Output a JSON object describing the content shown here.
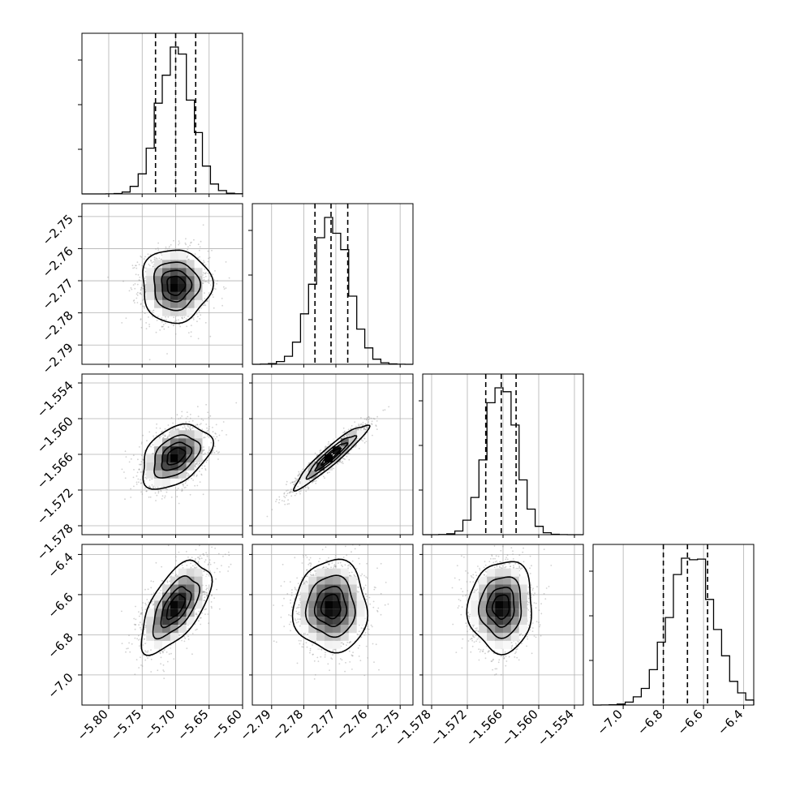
{
  "chart_data": {
    "type": "corner",
    "n_params": 4,
    "grid": true,
    "colors": {
      "line": "#000000",
      "grid": "#b0b0b0",
      "points": "#9a9a9a",
      "background": "#ffffff"
    },
    "params": [
      {
        "lim": [
          -5.84,
          -5.6
        ],
        "ticks": [
          -5.8,
          -5.75,
          -5.7,
          -5.65,
          -5.6
        ],
        "tick_labels": [
          "−5.80",
          "−5.75",
          "−5.70",
          "−5.65",
          "−5.60"
        ],
        "mean": -5.7,
        "sd": 0.025,
        "quantiles": [
          -5.73,
          -5.7,
          -5.67
        ]
      },
      {
        "lim": [
          -2.796,
          -2.746
        ],
        "ticks": [
          -2.79,
          -2.78,
          -2.77,
          -2.76,
          -2.75
        ],
        "tick_labels": [
          "−2.79",
          "−2.78",
          "−2.77",
          "−2.76",
          "−2.75"
        ],
        "mean": -2.7715,
        "sd": 0.0055,
        "quantiles": [
          -2.7765,
          -2.7715,
          -2.7663
        ]
      },
      {
        "lim": [
          -1.5795,
          -1.5525
        ],
        "ticks": [
          -1.578,
          -1.572,
          -1.566,
          -1.56,
          -1.554
        ],
        "tick_labels": [
          "−1.578",
          "−1.572",
          "−1.566",
          "−1.560",
          "−1.554"
        ],
        "mean": -1.5663,
        "sd": 0.0026,
        "quantiles": [
          -1.5689,
          -1.5663,
          -1.5638
        ]
      },
      {
        "lim": [
          -7.15,
          -6.35
        ],
        "ticks": [
          -7.0,
          -6.8,
          -6.6,
          -6.4
        ],
        "tick_labels": [
          "−7.0",
          "−6.8",
          "−6.6",
          "−6.4"
        ],
        "mean": -6.66,
        "sd": 0.11,
        "quantiles": [
          -6.8,
          -6.68,
          -6.58
        ]
      }
    ],
    "correlations": [
      [
        1.0,
        0.0,
        0.4,
        0.6
      ],
      [
        0.0,
        1.0,
        0.94,
        0.0
      ],
      [
        0.4,
        0.94,
        1.0,
        0.05
      ],
      [
        0.6,
        0.0,
        0.05,
        1.0
      ]
    ],
    "histogram_bins": 20,
    "contour_levels": [
      0.5,
      1.0,
      1.5,
      2.0
    ]
  }
}
